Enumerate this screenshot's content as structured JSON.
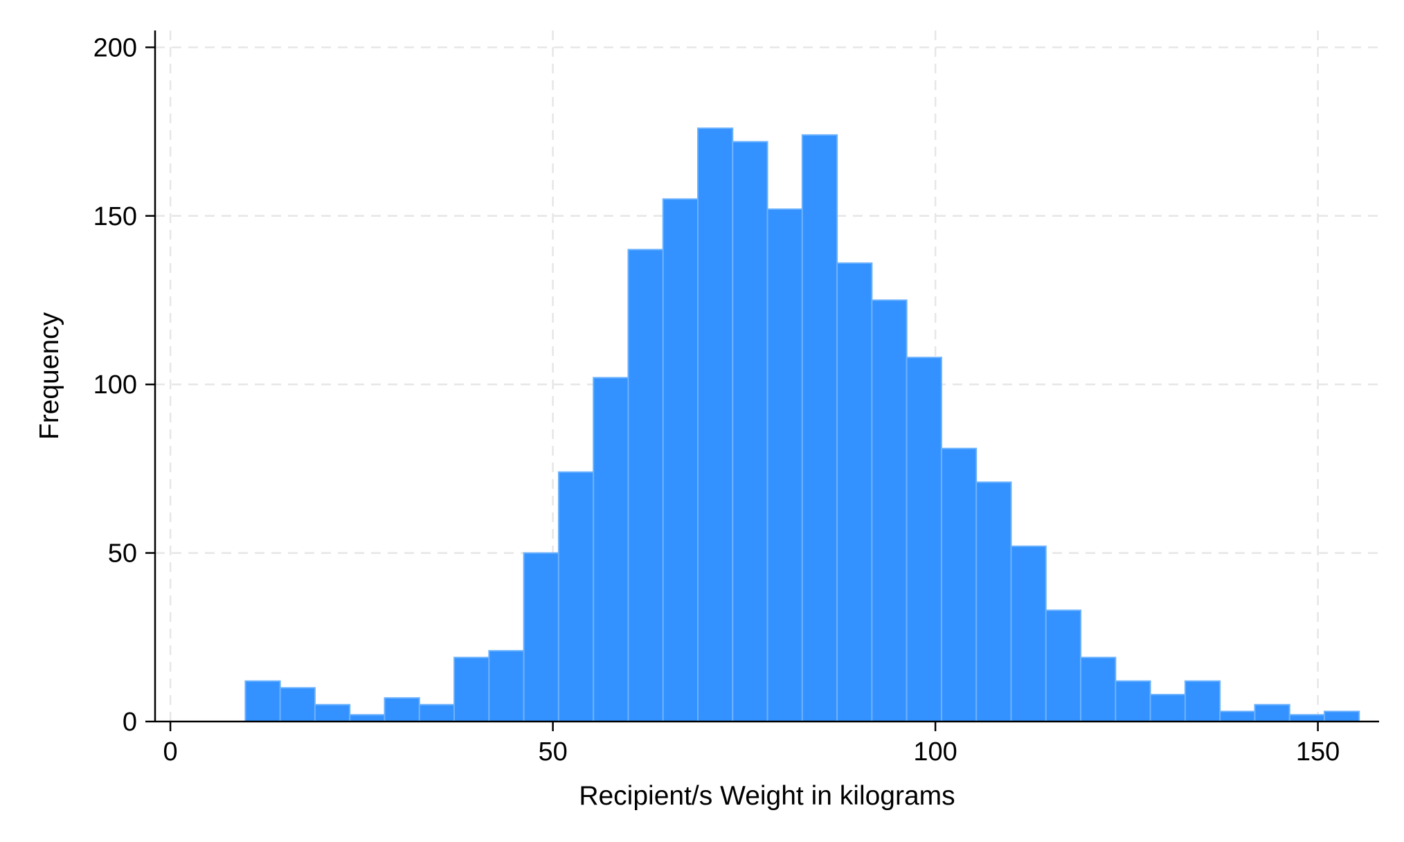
{
  "colors": {
    "bar_fill": "#3392ff",
    "bar_edge": "#6cb2ff",
    "grid": "#e6e6e6",
    "axis": "#000000"
  },
  "chart_data": {
    "type": "bar",
    "subtype": "histogram",
    "xlabel": "Recipient/s Weight in kilograms",
    "ylabel": "Frequency",
    "xlim": [
      -2,
      158
    ],
    "ylim": [
      0,
      205
    ],
    "x_ticks": [
      0,
      50,
      100,
      150
    ],
    "y_ticks": [
      0,
      50,
      100,
      150,
      200
    ],
    "grid": true,
    "bin_width": 4.55,
    "bin_start": 9.8,
    "bins": [
      {
        "x0": 9.8,
        "x1": 14.35,
        "value": 12
      },
      {
        "x0": 14.35,
        "x1": 18.9,
        "value": 10
      },
      {
        "x0": 18.9,
        "x1": 23.45,
        "value": 5
      },
      {
        "x0": 23.45,
        "x1": 28.0,
        "value": 2
      },
      {
        "x0": 28.0,
        "x1": 32.55,
        "value": 7
      },
      {
        "x0": 32.55,
        "x1": 37.1,
        "value": 5
      },
      {
        "x0": 37.1,
        "x1": 41.65,
        "value": 19
      },
      {
        "x0": 41.65,
        "x1": 46.2,
        "value": 21
      },
      {
        "x0": 46.2,
        "x1": 50.75,
        "value": 50
      },
      {
        "x0": 50.75,
        "x1": 55.3,
        "value": 74
      },
      {
        "x0": 55.3,
        "x1": 59.85,
        "value": 102
      },
      {
        "x0": 59.85,
        "x1": 64.4,
        "value": 140
      },
      {
        "x0": 64.4,
        "x1": 68.95,
        "value": 155
      },
      {
        "x0": 68.95,
        "x1": 73.5,
        "value": 176
      },
      {
        "x0": 73.5,
        "x1": 78.05,
        "value": 172
      },
      {
        "x0": 78.05,
        "x1": 82.6,
        "value": 152
      },
      {
        "x0": 82.6,
        "x1": 87.15,
        "value": 174
      },
      {
        "x0": 87.15,
        "x1": 91.7,
        "value": 136
      },
      {
        "x0": 91.7,
        "x1": 96.25,
        "value": 125
      },
      {
        "x0": 96.25,
        "x1": 100.8,
        "value": 108
      },
      {
        "x0": 100.8,
        "x1": 105.35,
        "value": 81
      },
      {
        "x0": 105.35,
        "x1": 109.9,
        "value": 71
      },
      {
        "x0": 109.9,
        "x1": 114.45,
        "value": 52
      },
      {
        "x0": 114.45,
        "x1": 119.0,
        "value": 33
      },
      {
        "x0": 119.0,
        "x1": 123.55,
        "value": 19
      },
      {
        "x0": 123.55,
        "x1": 128.1,
        "value": 12
      },
      {
        "x0": 128.1,
        "x1": 132.65,
        "value": 8
      },
      {
        "x0": 132.65,
        "x1": 137.2,
        "value": 12
      },
      {
        "x0": 137.2,
        "x1": 141.75,
        "value": 3
      },
      {
        "x0": 141.75,
        "x1": 146.3,
        "value": 5
      },
      {
        "x0": 146.3,
        "x1": 150.85,
        "value": 2
      },
      {
        "x0": 150.85,
        "x1": 155.4,
        "value": 3
      }
    ]
  }
}
